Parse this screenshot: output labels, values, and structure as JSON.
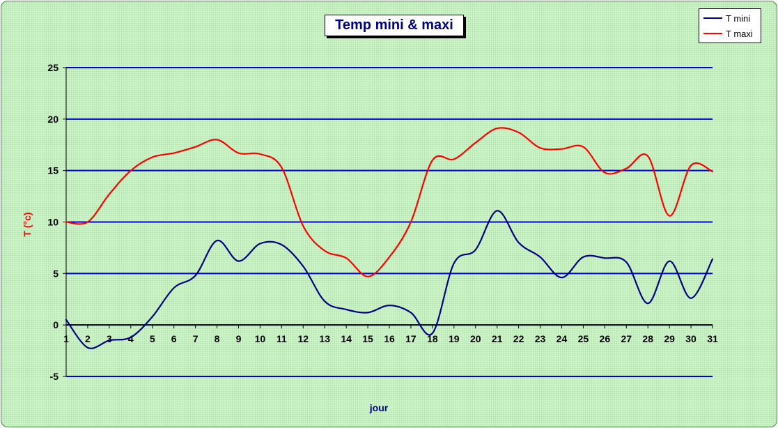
{
  "chart_data": {
    "type": "line",
    "title": "Temp mini & maxi",
    "xlabel": "jour",
    "ylabel": "T (°c)",
    "x": [
      1,
      2,
      3,
      4,
      5,
      6,
      7,
      8,
      9,
      10,
      11,
      12,
      13,
      14,
      15,
      16,
      17,
      18,
      19,
      20,
      21,
      22,
      23,
      24,
      25,
      26,
      27,
      28,
      29,
      30,
      31
    ],
    "ylim": [
      -5,
      25
    ],
    "yticks": [
      -5,
      0,
      5,
      10,
      15,
      20,
      25
    ],
    "grid": true,
    "legend_position": "top-right",
    "series": [
      {
        "name": "T mini",
        "color": "#000080",
        "values": [
          0.5,
          -2.2,
          -1.5,
          -1.2,
          0.8,
          3.6,
          4.8,
          8.2,
          6.2,
          7.9,
          7.8,
          5.7,
          2.3,
          1.5,
          1.2,
          1.9,
          1.2,
          -0.8,
          6.0,
          7.3,
          11.1,
          8.0,
          6.6,
          4.6,
          6.6,
          6.5,
          6.1,
          2.1,
          6.2,
          2.6,
          6.4
        ]
      },
      {
        "name": "T maxi",
        "color": "#ff0000",
        "values": [
          10.0,
          10.0,
          12.7,
          15.0,
          16.3,
          16.7,
          17.3,
          18.0,
          16.7,
          16.6,
          15.3,
          9.6,
          7.2,
          6.5,
          4.7,
          6.6,
          10.0,
          16.0,
          16.1,
          17.7,
          19.1,
          18.7,
          17.2,
          17.1,
          17.3,
          14.8,
          15.2,
          16.4,
          10.6,
          15.5,
          14.9
        ]
      }
    ],
    "colors": {
      "background": "#ccf5c8",
      "gridline": "#0000cc",
      "axis": "#000000"
    }
  }
}
